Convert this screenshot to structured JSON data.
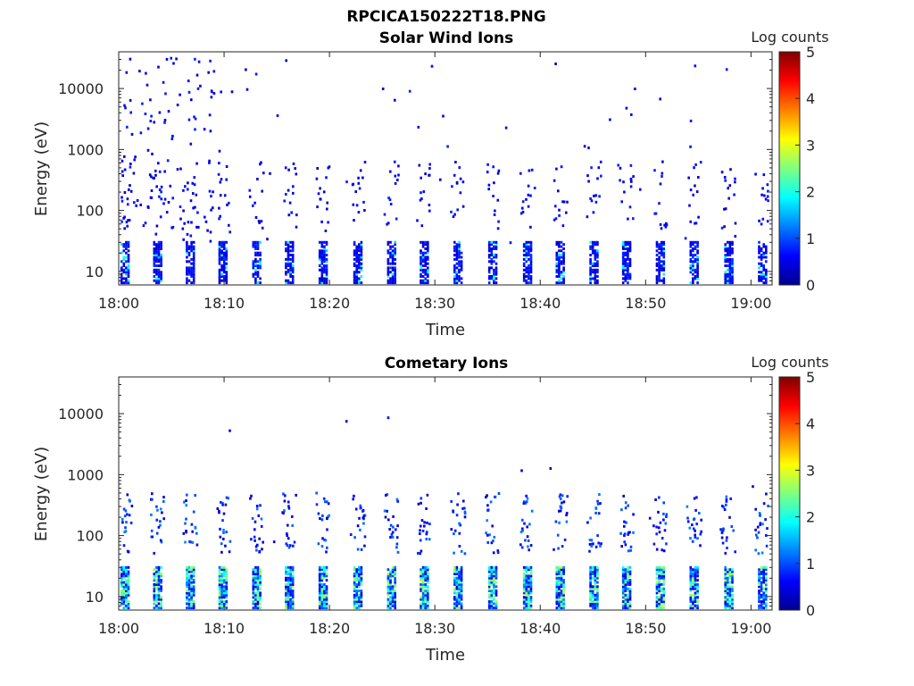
{
  "figure_title": "RPCICA150222T18.PNG",
  "panel_titles": [
    "Solar Wind Ions",
    "Cometary Ions"
  ],
  "colorbar_label": "Log counts",
  "chart_data": [
    {
      "type": "heatmap",
      "title": "Solar Wind Ions",
      "xlabel": "Time",
      "ylabel": "Energy (eV)",
      "x_range": [
        "18:00",
        "19:02"
      ],
      "x_tick_labels": [
        "18:00",
        "18:10",
        "18:20",
        "18:30",
        "18:40",
        "18:50",
        "19:00"
      ],
      "y_scale": "log",
      "y_range": [
        6,
        40000
      ],
      "y_tick_labels": [
        "10",
        "100",
        "1000",
        "10000"
      ],
      "colorbar": {
        "label": "Log counts",
        "range": [
          0,
          5
        ],
        "tick_labels": [
          "0",
          "1",
          "2",
          "3",
          "4",
          "5"
        ],
        "colormap": "jet"
      },
      "sweep_times_min": [
        0.5,
        3.6,
        6.7,
        9.8,
        13,
        16.1,
        19.3,
        22.6,
        25.8,
        28.9,
        32.1,
        35.4,
        38.7,
        41.8,
        45,
        48.1,
        51.3,
        54.5,
        57.8,
        61
      ]
    },
    {
      "type": "heatmap",
      "title": "Cometary Ions",
      "xlabel": "Time",
      "ylabel": "Energy (eV)",
      "x_range": [
        "18:00",
        "19:02"
      ],
      "x_tick_labels": [
        "18:00",
        "18:10",
        "18:20",
        "18:30",
        "18:40",
        "18:50",
        "19:00"
      ],
      "y_scale": "log",
      "y_range": [
        6,
        40000
      ],
      "y_tick_labels": [
        "10",
        "100",
        "1000",
        "10000"
      ],
      "colorbar": {
        "label": "Log counts",
        "range": [
          0,
          5
        ],
        "tick_labels": [
          "0",
          "1",
          "2",
          "3",
          "4",
          "5"
        ],
        "colormap": "jet"
      },
      "sweep_times_min": [
        0.5,
        3.6,
        6.7,
        9.8,
        13,
        16.1,
        19.3,
        22.6,
        25.8,
        28.9,
        32.1,
        35.4,
        38.7,
        41.8,
        45,
        48.1,
        51.3,
        54.5,
        57.8,
        61
      ]
    }
  ]
}
